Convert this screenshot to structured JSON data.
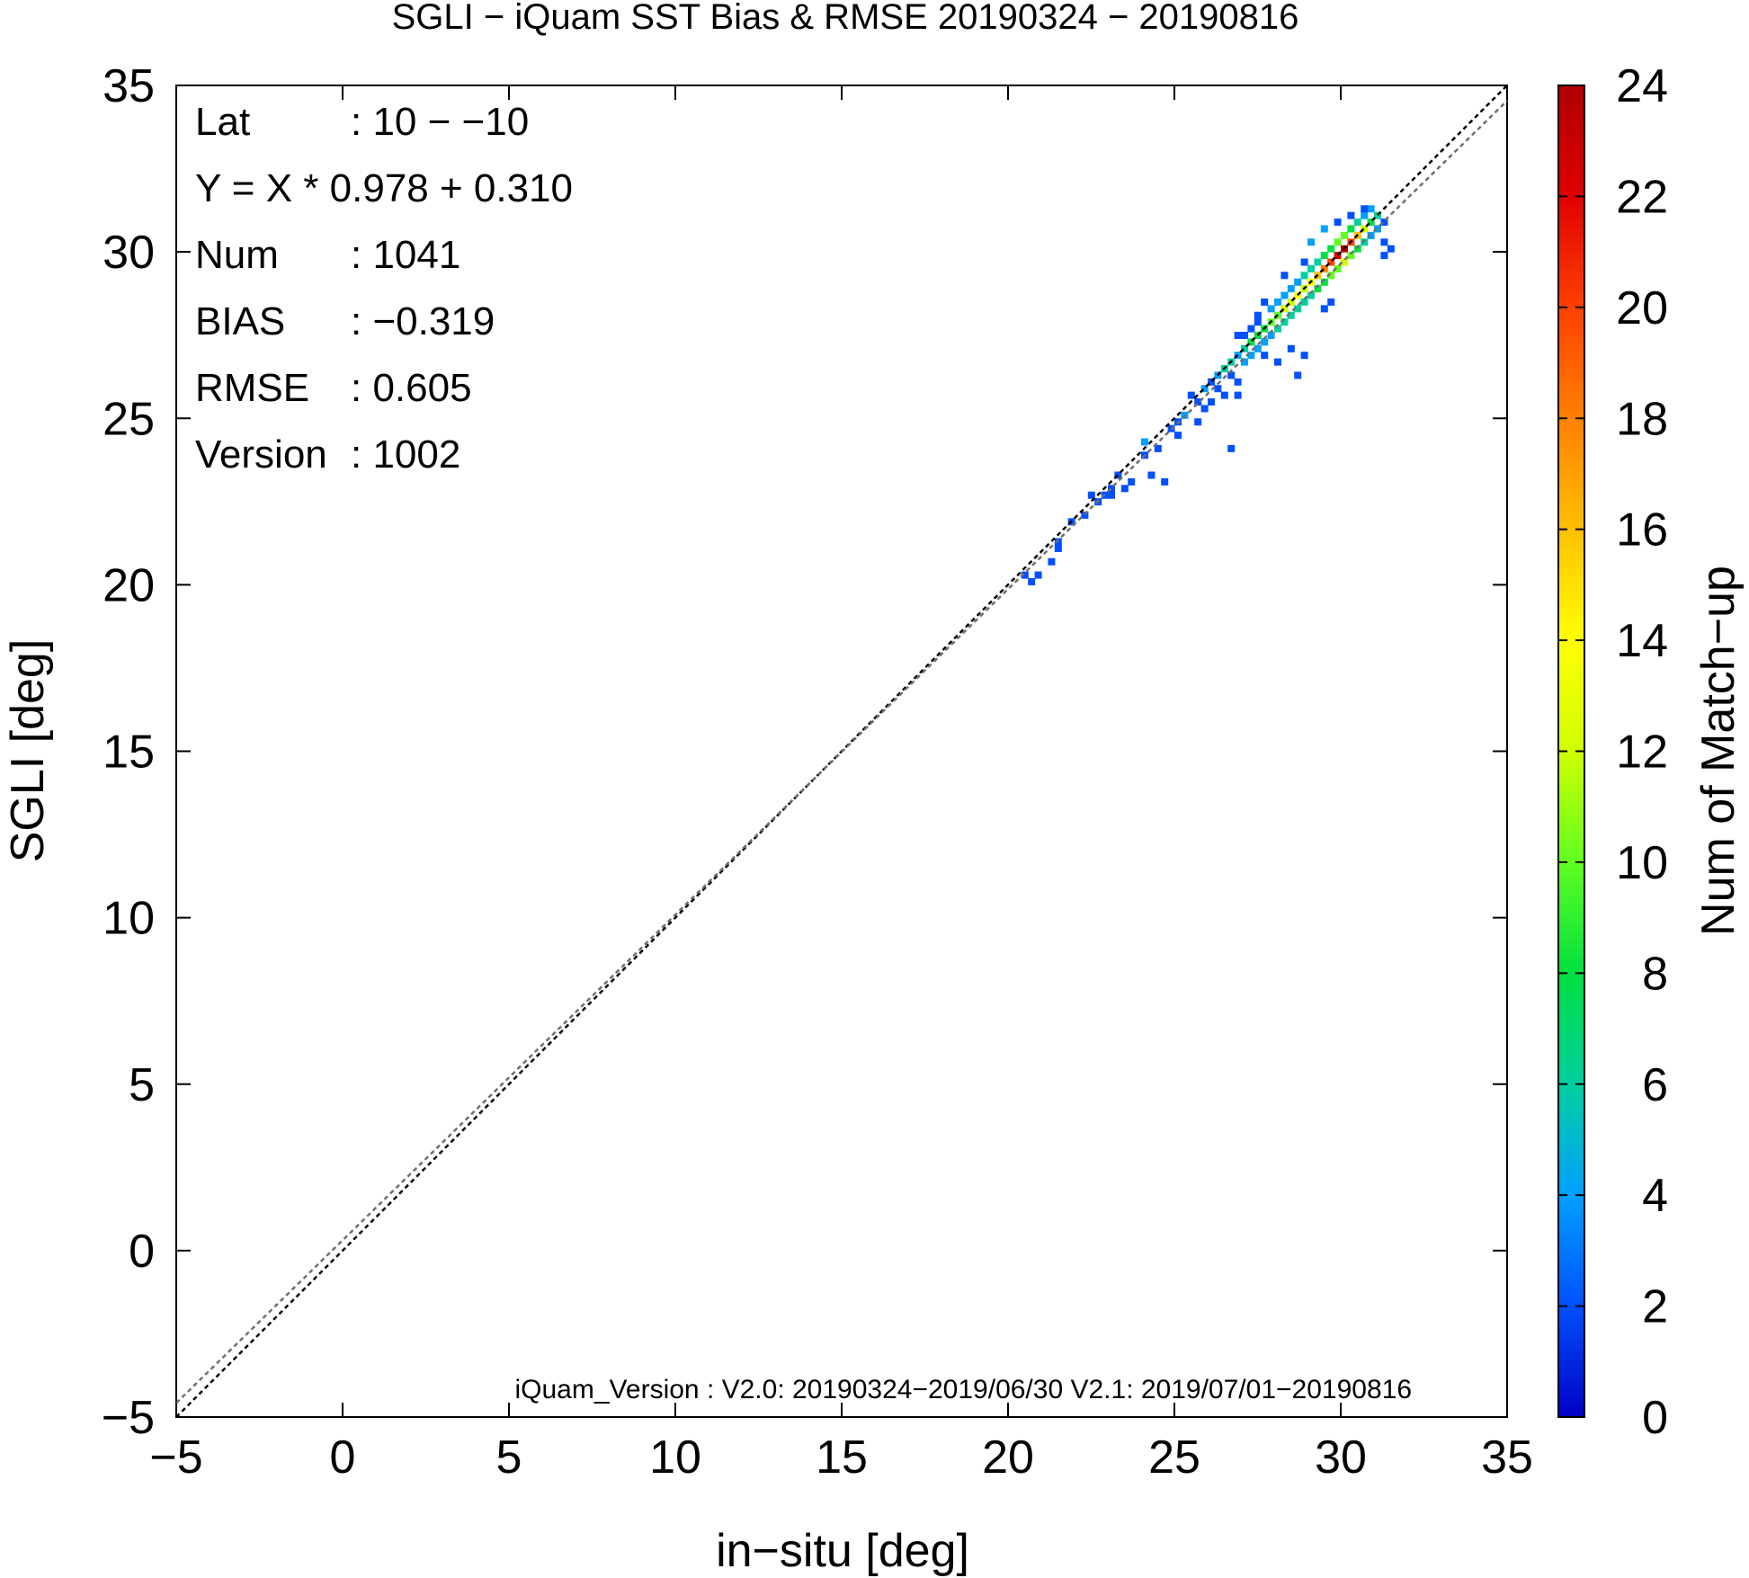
{
  "chart_data": {
    "type": "heatmap",
    "title": "SGLI − iQuam  SST Bias & RMSE 20190324 − 20190816",
    "xlabel": "in−situ [deg]",
    "ylabel": "SGLI [deg]",
    "xlim": [
      -5,
      35
    ],
    "ylim": [
      -5,
      35
    ],
    "x_ticks": [
      "−5",
      "0",
      "5",
      "10",
      "15",
      "20",
      "25",
      "30",
      "35"
    ],
    "y_ticks": [
      "−5",
      "0",
      "5",
      "10",
      "15",
      "20",
      "25",
      "30",
      "35"
    ],
    "colorbar": {
      "label": "Num of Match−up",
      "range": [
        0,
        24
      ],
      "ticks": [
        "0",
        "2",
        "4",
        "6",
        "8",
        "10",
        "12",
        "14",
        "16",
        "18",
        "20",
        "22",
        "24"
      ],
      "colors": [
        "#0000c8",
        "#0050ff",
        "#00a0ff",
        "#00d0a0",
        "#00e040",
        "#60ff20",
        "#d0ff00",
        "#ffff00",
        "#ffc000",
        "#ff8000",
        "#ff4000",
        "#e00000",
        "#b00000"
      ]
    },
    "grid": false,
    "bin_size": 0.2,
    "lines": [
      {
        "style": "dotted",
        "color": "#000000",
        "slope": 1.0,
        "intercept": 0.0
      },
      {
        "style": "dotted",
        "color": "#707070",
        "slope": 0.978,
        "intercept": 0.31
      }
    ],
    "stats": [
      {
        "label": "Lat",
        "value": ": 10 − −10"
      },
      {
        "label": "Y = X * 0.978 + 0.310",
        "value": ""
      },
      {
        "label": "Num",
        "value": ": 1041"
      },
      {
        "label": "BIAS",
        "value": ": −0.319"
      },
      {
        "label": "RMSE",
        "value": ": 0.605"
      },
      {
        "label": "Version",
        "value": ": 1002"
      }
    ],
    "footnote": "iQuam_Version : V2.0: 20190324−2019/06/30 V2.1: 2019/07/01−20190816",
    "cells": [
      [
        20.4,
        20.2,
        1
      ],
      [
        20.6,
        20.0,
        1
      ],
      [
        20.8,
        20.2,
        1
      ],
      [
        21.4,
        21.2,
        1
      ],
      [
        21.4,
        21.0,
        1
      ],
      [
        21.2,
        20.6,
        1
      ],
      [
        21.8,
        21.8,
        1
      ],
      [
        22.2,
        22.0,
        1
      ],
      [
        22.4,
        22.6,
        1
      ],
      [
        22.6,
        22.4,
        1
      ],
      [
        22.8,
        22.6,
        2
      ],
      [
        23.0,
        22.8,
        1
      ],
      [
        23.2,
        23.2,
        1
      ],
      [
        23.0,
        22.6,
        1
      ],
      [
        23.4,
        22.8,
        1
      ],
      [
        23.6,
        23.0,
        1
      ],
      [
        24.0,
        23.8,
        1
      ],
      [
        24.0,
        24.2,
        3
      ],
      [
        24.2,
        23.2,
        1
      ],
      [
        24.4,
        24.0,
        1
      ],
      [
        24.6,
        23.0,
        1
      ],
      [
        24.8,
        24.6,
        2
      ],
      [
        25.0,
        24.8,
        1
      ],
      [
        25.0,
        24.4,
        1
      ],
      [
        25.2,
        25.0,
        3
      ],
      [
        25.4,
        25.6,
        1
      ],
      [
        25.6,
        25.4,
        2
      ],
      [
        25.6,
        24.8,
        1
      ],
      [
        25.8,
        25.8,
        3
      ],
      [
        25.8,
        25.2,
        1
      ],
      [
        26.0,
        26.0,
        2
      ],
      [
        26.0,
        25.4,
        1
      ],
      [
        26.2,
        26.2,
        4
      ],
      [
        26.2,
        25.8,
        2
      ],
      [
        26.4,
        26.4,
        5
      ],
      [
        26.4,
        25.6,
        1
      ],
      [
        26.6,
        26.6,
        6
      ],
      [
        26.6,
        26.2,
        2
      ],
      [
        26.8,
        26.8,
        4
      ],
      [
        26.8,
        26.0,
        2
      ],
      [
        26.8,
        25.6,
        1
      ],
      [
        26.6,
        24.0,
        1
      ],
      [
        27.0,
        27.0,
        6
      ],
      [
        27.0,
        26.6,
        3
      ],
      [
        27.0,
        27.4,
        2
      ],
      [
        27.2,
        27.2,
        7
      ],
      [
        27.2,
        26.8,
        3
      ],
      [
        27.2,
        27.6,
        2
      ],
      [
        27.4,
        27.4,
        8
      ],
      [
        27.4,
        27.0,
        4
      ],
      [
        27.4,
        27.8,
        2
      ],
      [
        27.6,
        27.6,
        7
      ],
      [
        27.6,
        27.2,
        3
      ],
      [
        27.6,
        26.8,
        2
      ],
      [
        27.8,
        27.8,
        9
      ],
      [
        27.8,
        27.4,
        4
      ],
      [
        27.8,
        28.2,
        3
      ],
      [
        28.0,
        28.0,
        10
      ],
      [
        28.0,
        27.6,
        5
      ],
      [
        28.0,
        28.4,
        3
      ],
      [
        28.2,
        28.2,
        11
      ],
      [
        28.2,
        27.8,
        5
      ],
      [
        28.2,
        28.6,
        4
      ],
      [
        28.4,
        28.4,
        12
      ],
      [
        28.4,
        28.0,
        6
      ],
      [
        28.4,
        28.8,
        4
      ],
      [
        28.6,
        28.6,
        13
      ],
      [
        28.6,
        28.2,
        5
      ],
      [
        28.6,
        29.0,
        4
      ],
      [
        28.8,
        28.8,
        12
      ],
      [
        28.8,
        28.4,
        5
      ],
      [
        28.8,
        29.2,
        5
      ],
      [
        29.0,
        29.0,
        14
      ],
      [
        29.0,
        28.6,
        6
      ],
      [
        29.0,
        29.4,
        6
      ],
      [
        29.2,
        29.2,
        15
      ],
      [
        29.2,
        28.8,
        7
      ],
      [
        29.2,
        29.6,
        6
      ],
      [
        29.4,
        29.4,
        18
      ],
      [
        29.4,
        29.0,
        8
      ],
      [
        29.4,
        29.8,
        7
      ],
      [
        29.6,
        29.6,
        20
      ],
      [
        29.6,
        29.2,
        9
      ],
      [
        29.6,
        30.0,
        8
      ],
      [
        29.8,
        29.8,
        22
      ],
      [
        29.8,
        29.4,
        10
      ],
      [
        29.8,
        30.2,
        9
      ],
      [
        30.0,
        30.0,
        24
      ],
      [
        30.0,
        29.6,
        12
      ],
      [
        30.0,
        30.4,
        10
      ],
      [
        30.2,
        30.2,
        20
      ],
      [
        30.2,
        29.8,
        10
      ],
      [
        30.2,
        30.6,
        8
      ],
      [
        30.4,
        30.4,
        16
      ],
      [
        30.4,
        30.0,
        8
      ],
      [
        30.4,
        30.8,
        6
      ],
      [
        30.6,
        30.6,
        12
      ],
      [
        30.6,
        30.2,
        6
      ],
      [
        30.6,
        31.0,
        4
      ],
      [
        30.8,
        30.8,
        8
      ],
      [
        30.8,
        30.4,
        4
      ],
      [
        30.8,
        31.2,
        3
      ],
      [
        31.0,
        31.0,
        5
      ],
      [
        31.0,
        30.6,
        3
      ],
      [
        31.2,
        30.8,
        2
      ],
      [
        31.2,
        30.2,
        1
      ],
      [
        31.4,
        30.0,
        1
      ],
      [
        29.6,
        28.4,
        2
      ],
      [
        29.4,
        28.2,
        1
      ],
      [
        28.8,
        26.8,
        1
      ],
      [
        28.6,
        26.2,
        1
      ],
      [
        28.4,
        27.0,
        2
      ],
      [
        28.0,
        26.6,
        1
      ],
      [
        28.2,
        29.2,
        2
      ],
      [
        27.6,
        28.4,
        1
      ],
      [
        27.4,
        28.0,
        2
      ],
      [
        26.8,
        27.4,
        1
      ],
      [
        28.8,
        29.6,
        2
      ],
      [
        29.0,
        30.2,
        3
      ],
      [
        29.4,
        30.6,
        3
      ],
      [
        29.8,
        30.8,
        2
      ],
      [
        30.2,
        31.0,
        2
      ],
      [
        30.6,
        31.2,
        1
      ],
      [
        31.2,
        29.8,
        1
      ]
    ]
  }
}
